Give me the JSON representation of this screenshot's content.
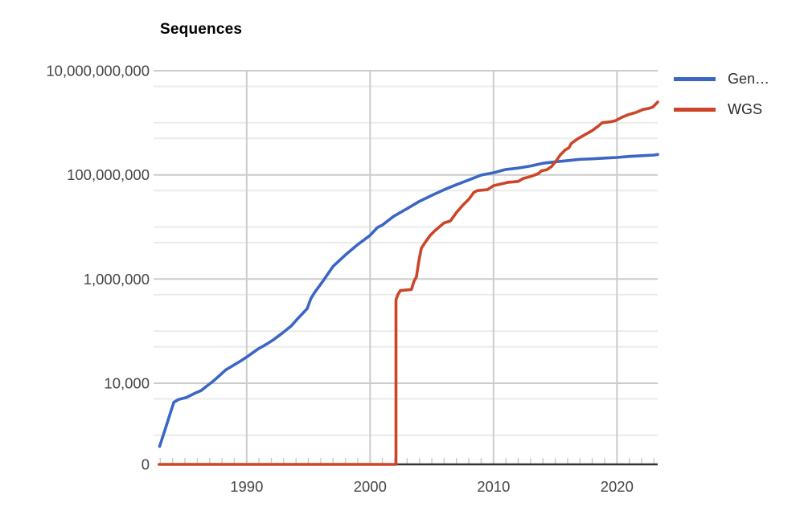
{
  "title": "Sequences",
  "legend": {
    "items": [
      {
        "label": "Gen…",
        "color": "#3b66c4"
      },
      {
        "label": "WGS",
        "color": "#cc4528"
      }
    ]
  },
  "colors": {
    "series_genbank": "#3b66c4",
    "series_wgs": "#cc4528",
    "gridline_major": "#cccccc",
    "gridline_minor": "#ebebeb",
    "axis_baseline": "#333333",
    "axis_text": "#464646"
  },
  "chart_data": {
    "type": "line",
    "title": "Sequences",
    "xlabel": "",
    "ylabel": "Sequences",
    "y_scale": "log (0 shown at baseline)",
    "grid": "on",
    "legend_position": "right",
    "x_range": [
      1982.85,
      2023.3
    ],
    "x_major_ticks": [
      1990,
      2000,
      2010,
      2020
    ],
    "x_minor_tick_years": "every year 1983-2023",
    "y_major_ticks": [
      {
        "value": 10000000000,
        "label": "10,000,000,000"
      },
      {
        "value": 100000000,
        "label": "100,000,000"
      },
      {
        "value": 1000000,
        "label": "1,000,000"
      },
      {
        "value": 10000,
        "label": "10,000"
      },
      {
        "value": 0,
        "label": "0"
      }
    ],
    "y_minor_gridline_values": [
      5000000000,
      1000000000,
      500000000,
      50000000,
      10000000,
      5000000,
      500000,
      100000,
      50000,
      5000,
      1000
    ],
    "series": [
      {
        "name": "Gen…",
        "full_name_shown": "Gen…",
        "color": "#3b66c4",
        "points": [
          [
            1982.95,
            610
          ],
          [
            1983.4,
            1300
          ],
          [
            1983.8,
            2600
          ],
          [
            1984.1,
            4300
          ],
          [
            1984.5,
            4900
          ],
          [
            1985.1,
            5300
          ],
          [
            1985.8,
            6400
          ],
          [
            1986.3,
            7200
          ],
          [
            1986.9,
            9300
          ],
          [
            1987.3,
            11000
          ],
          [
            1987.8,
            14000
          ],
          [
            1988.3,
            18000
          ],
          [
            1989.0,
            22500
          ],
          [
            1989.6,
            27500
          ],
          [
            1990.1,
            33000
          ],
          [
            1990.9,
            45000
          ],
          [
            1991.6,
            56000
          ],
          [
            1992.2,
            69000
          ],
          [
            1992.9,
            92000
          ],
          [
            1993.6,
            125000
          ],
          [
            1994.2,
            180000
          ],
          [
            1994.9,
            270000
          ],
          [
            1995.2,
            420000
          ],
          [
            1995.5,
            550000
          ],
          [
            1996.2,
            930000
          ],
          [
            1997.0,
            1750000
          ],
          [
            1998.0,
            2900000
          ],
          [
            1999.0,
            4600000
          ],
          [
            2000.0,
            6900000
          ],
          [
            2000.6,
            9800000
          ],
          [
            2001.0,
            10900000
          ],
          [
            2001.9,
            16000000
          ],
          [
            2003.0,
            22500000
          ],
          [
            2004.0,
            31000000
          ],
          [
            2005.0,
            40500000
          ],
          [
            2006.0,
            52000000
          ],
          [
            2007.0,
            65000000
          ],
          [
            2008.0,
            80000000
          ],
          [
            2009.0,
            99000000
          ],
          [
            2010.0,
            110000000
          ],
          [
            2011.0,
            127000000
          ],
          [
            2012.0,
            135000000
          ],
          [
            2013.0,
            148000000
          ],
          [
            2014.0,
            167000000
          ],
          [
            2015.0,
            178000000
          ],
          [
            2016.0,
            188000000
          ],
          [
            2017.0,
            199000000
          ],
          [
            2018.0,
            203000000
          ],
          [
            2019.0,
            210000000
          ],
          [
            2020.0,
            216000000
          ],
          [
            2021.0,
            226000000
          ],
          [
            2022.0,
            233000000
          ],
          [
            2023.0,
            240000000
          ],
          [
            2023.3,
            246000000
          ]
        ]
      },
      {
        "name": "WGS",
        "full_name_shown": "WGS",
        "color": "#cc4528",
        "points": [
          [
            1982.9,
            0
          ],
          [
            2002.1,
            0
          ],
          [
            2002.1,
            400000
          ],
          [
            2002.25,
            500000
          ],
          [
            2002.45,
            600000
          ],
          [
            2003.35,
            630000
          ],
          [
            2003.55,
            900000
          ],
          [
            2003.75,
            1100000
          ],
          [
            2003.95,
            2200000
          ],
          [
            2004.15,
            3900000
          ],
          [
            2004.45,
            5000000
          ],
          [
            2004.85,
            6800000
          ],
          [
            2005.25,
            8500000
          ],
          [
            2005.6,
            10000000
          ],
          [
            2006.0,
            12000000
          ],
          [
            2006.5,
            13000000
          ],
          [
            2007.0,
            19000000
          ],
          [
            2007.5,
            26000000
          ],
          [
            2008.0,
            34000000
          ],
          [
            2008.4,
            46000000
          ],
          [
            2008.7,
            50000000
          ],
          [
            2009.5,
            52000000
          ],
          [
            2010.0,
            62000000
          ],
          [
            2010.5,
            66000000
          ],
          [
            2011.2,
            72000000
          ],
          [
            2012.0,
            75000000
          ],
          [
            2012.4,
            85000000
          ],
          [
            2013.0,
            93000000
          ],
          [
            2013.6,
            105000000
          ],
          [
            2013.9,
            120000000
          ],
          [
            2014.3,
            125000000
          ],
          [
            2014.7,
            145000000
          ],
          [
            2015.1,
            190000000
          ],
          [
            2015.4,
            240000000
          ],
          [
            2015.8,
            300000000
          ],
          [
            2016.1,
            330000000
          ],
          [
            2016.3,
            400000000
          ],
          [
            2016.8,
            490000000
          ],
          [
            2017.4,
            590000000
          ],
          [
            2018.0,
            710000000
          ],
          [
            2018.5,
            870000000
          ],
          [
            2018.8,
            1000000000
          ],
          [
            2019.5,
            1050000000
          ],
          [
            2019.9,
            1100000000
          ],
          [
            2020.4,
            1280000000
          ],
          [
            2020.9,
            1430000000
          ],
          [
            2021.6,
            1600000000
          ],
          [
            2022.1,
            1800000000
          ],
          [
            2022.6,
            1900000000
          ],
          [
            2022.9,
            2000000000
          ],
          [
            2023.3,
            2500000000
          ]
        ]
      }
    ]
  }
}
